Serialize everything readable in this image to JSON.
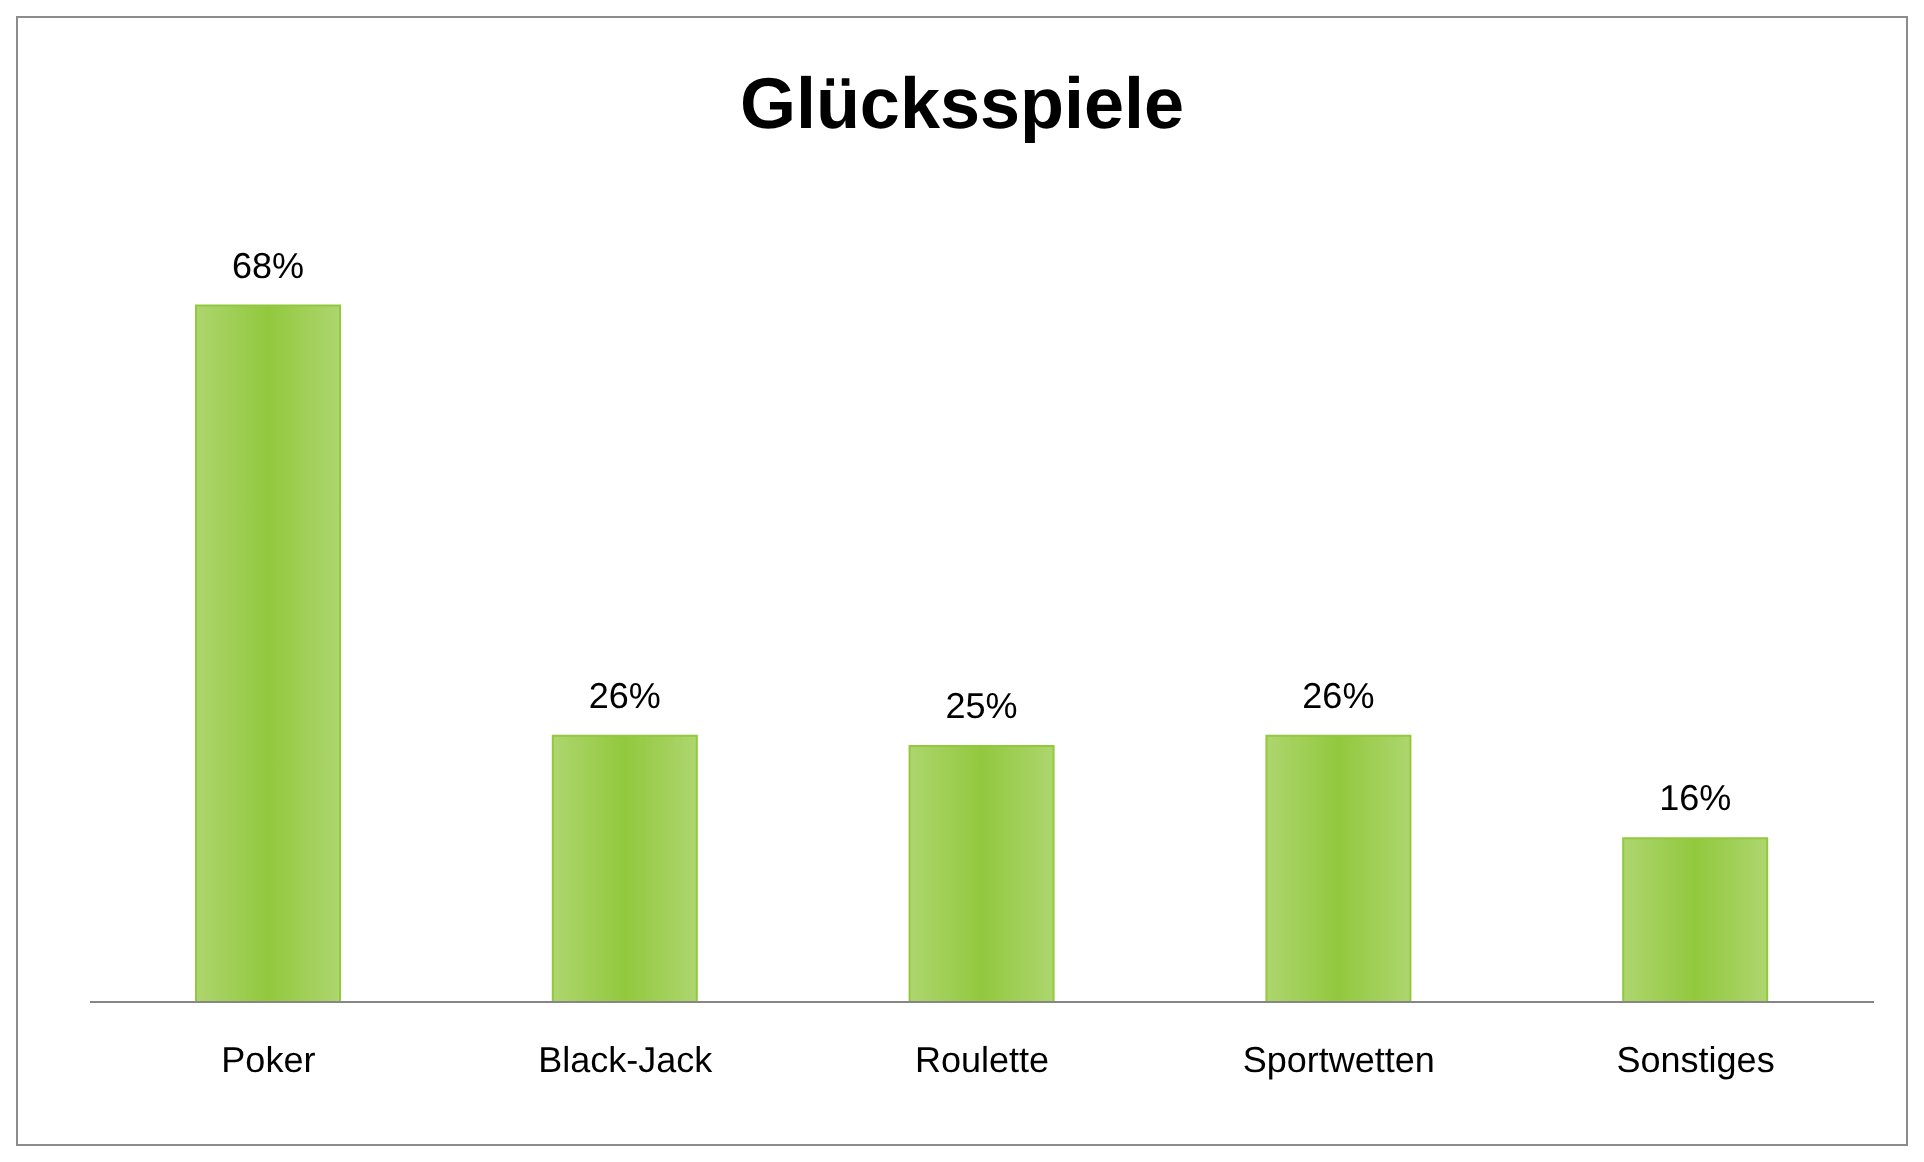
{
  "chart_data": {
    "type": "bar",
    "title": "Glücksspiele",
    "categories": [
      "Poker",
      "Black-Jack",
      "Roulette",
      "Sportwetten",
      "Sonstiges"
    ],
    "values": [
      68,
      26,
      25,
      26,
      16
    ],
    "value_labels": [
      "68%",
      "26%",
      "25%",
      "26%",
      "16%"
    ],
    "color": "#92c83e",
    "grid": false,
    "legend": false
  }
}
